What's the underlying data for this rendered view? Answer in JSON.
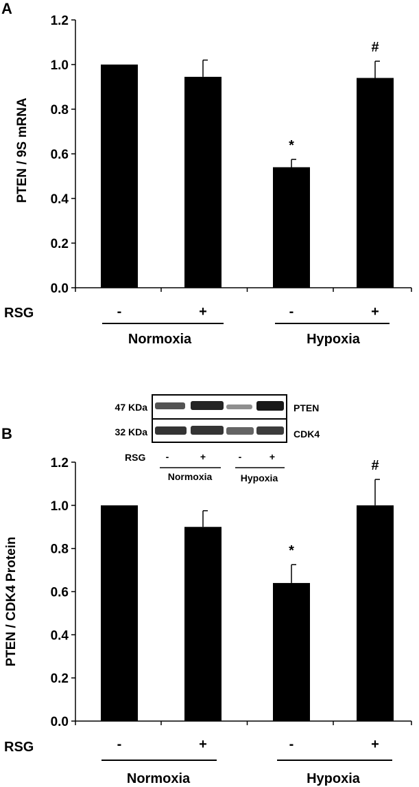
{
  "chart_data": [
    {
      "panel_label": "A",
      "type": "bar",
      "ylabel": "PTEN / 9S mRNA",
      "ylim": [
        0,
        1.2
      ],
      "yticks": [
        "0.0",
        "0.2",
        "0.4",
        "0.6",
        "0.8",
        "1.0",
        "1.2"
      ],
      "categories": [
        "Normoxia -",
        "Normoxia +",
        "Hypoxia -",
        "Hypoxia +"
      ],
      "values": [
        1.0,
        0.945,
        0.54,
        0.94
      ],
      "errors": [
        0.0,
        0.075,
        0.035,
        0.075
      ],
      "annotations": [
        "",
        "",
        "*",
        "#"
      ],
      "row_label": "RSG",
      "rsg_signs": [
        "-",
        "+",
        "-",
        "+"
      ],
      "groups": [
        "Normoxia",
        "Hypoxia"
      ],
      "bar_color": "#000000"
    },
    {
      "panel_label": "B",
      "type": "bar",
      "ylabel": "PTEN / CDK4 Protein",
      "ylim": [
        0,
        1.2
      ],
      "yticks": [
        "0.0",
        "0.2",
        "0.4",
        "0.6",
        "0.8",
        "1.0",
        "1.2"
      ],
      "categories": [
        "Normoxia -",
        "Normoxia +",
        "Hypoxia -",
        "Hypoxia +"
      ],
      "values": [
        1.0,
        0.9,
        0.64,
        1.0
      ],
      "errors": [
        0.0,
        0.075,
        0.085,
        0.12
      ],
      "annotations": [
        "",
        "",
        "*",
        "#"
      ],
      "row_label": "RSG",
      "rsg_signs": [
        "-",
        "+",
        "-",
        "+"
      ],
      "groups": [
        "Normoxia",
        "Hypoxia"
      ],
      "bar_color": "#000000"
    }
  ],
  "blot": {
    "rows": [
      {
        "kda": "47 KDa",
        "protein": "PTEN"
      },
      {
        "kda": "32  KDa",
        "protein": "CDK4"
      }
    ],
    "row_label": "RSG",
    "rsg_signs": [
      "-",
      "+",
      "-",
      "+"
    ],
    "groups": [
      "Normoxia",
      "Hypoxia"
    ]
  }
}
